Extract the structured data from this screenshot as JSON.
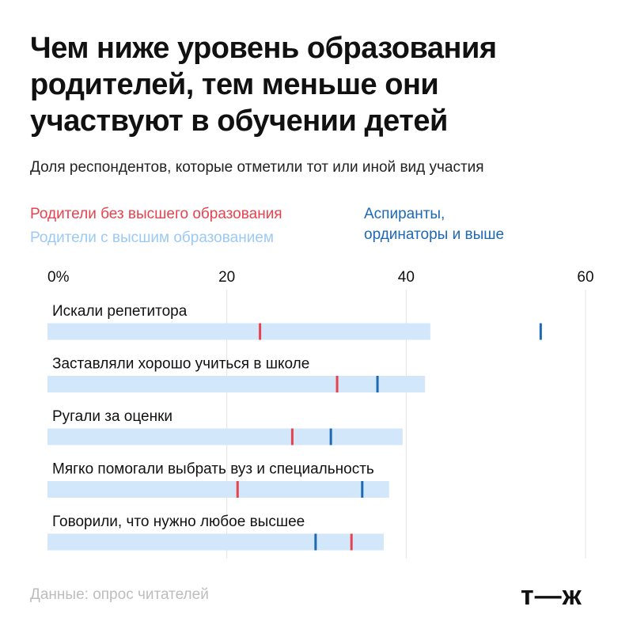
{
  "title_lines": [
    "Чем ниже уровень образования",
    "родителей, тем меньше они",
    "участвуют в обучении детей"
  ],
  "subtitle": "Доля респондентов, которые отметили тот или иной вид участия",
  "legend": {
    "no_higher": {
      "label": "Родители без высшего образования",
      "color": "#e8424f"
    },
    "higher": {
      "label": "Родители с высшим образованием",
      "color": "#9ccaf5"
    },
    "postgrad": {
      "label_lines": [
        "Аспиранты,",
        "ординаторы и выше"
      ],
      "color": "#1e68b4"
    }
  },
  "source": "Данные: опрос читателей",
  "logo": "т—ж",
  "chart_data": {
    "type": "bar",
    "orientation": "horizontal",
    "title": "Чем ниже уровень образования родителей, тем меньше они участвуют в обучении детей",
    "subtitle": "Доля респондентов, которые отметили тот или иной вид участия",
    "xlim": [
      0,
      60
    ],
    "x_ticks": [
      0,
      20,
      40,
      60
    ],
    "x_tick_labels": [
      "0%",
      "20",
      "40",
      "60"
    ],
    "grid": true,
    "categories": [
      "Искали репетитора",
      "Заставляли хорошо учиться в школе",
      "Ругали за оценки",
      "Мягко помогали выбрать вуз и специальность",
      "Говорили, что нужно любое высшее"
    ],
    "series": [
      {
        "name": "Родители с высшим образованием",
        "render": "bar",
        "color": "#d3e7fb",
        "values": [
          42.7,
          42.1,
          39.6,
          38.1,
          37.5
        ]
      },
      {
        "name": "Родители без высшего образования",
        "render": "tick",
        "color": "#e8424f",
        "values": [
          23.7,
          32.3,
          27.3,
          21.2,
          33.9
        ]
      },
      {
        "name": "Аспиранты, ординаторы и выше",
        "render": "tick",
        "color": "#1e68b4",
        "values": [
          55.0,
          36.8,
          31.6,
          35.1,
          29.9
        ]
      }
    ]
  }
}
